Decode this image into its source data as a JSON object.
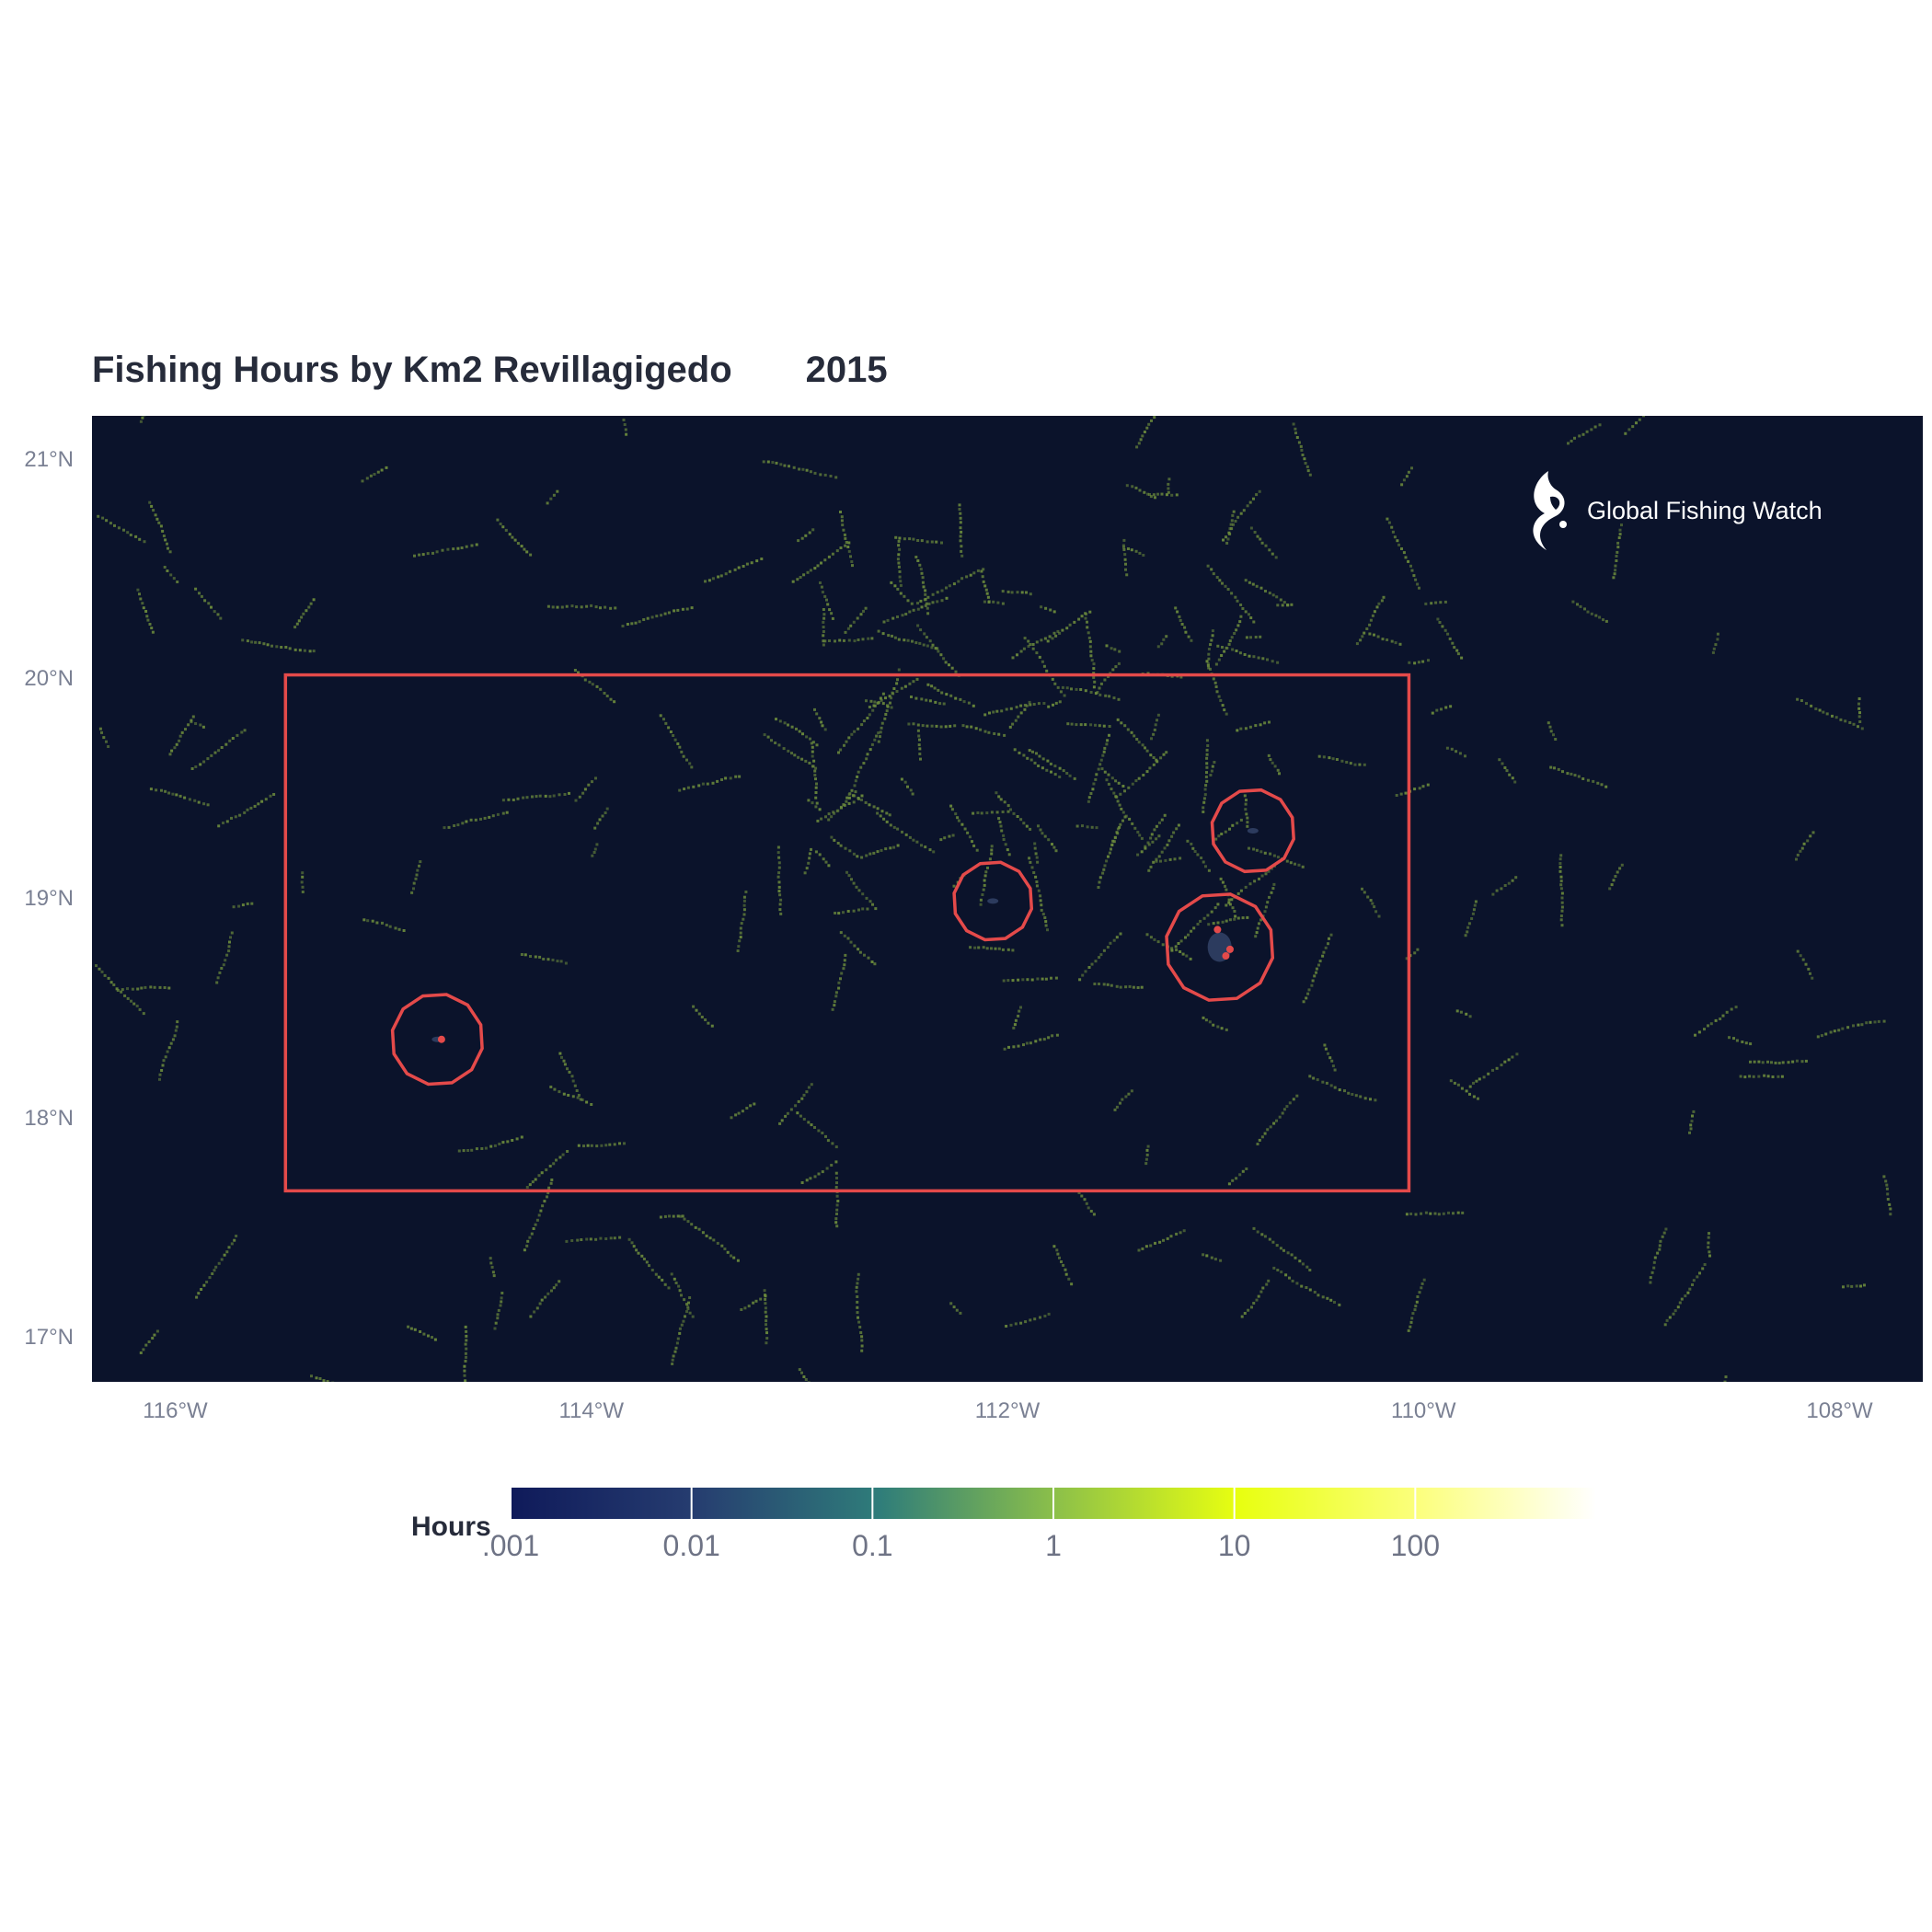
{
  "title": "Fishing Hours by Km2 Revillagigedo",
  "year": "2015",
  "brand": "Global Fishing Watch",
  "colors": {
    "ocean": "#0b132b",
    "boundary": "#e44a4a",
    "fishing_track": "#6b8a3c",
    "title_text": "#262b3a",
    "axis_text": "#7a8093"
  },
  "axes": {
    "lat_labels": [
      "21°N",
      "20°N",
      "19°N",
      "18°N",
      "17°N"
    ],
    "lon_labels": [
      "116°W",
      "114°W",
      "112°W",
      "110°W",
      "108°W"
    ]
  },
  "chart_data": {
    "type": "heatmap",
    "title": "Fishing Hours by Km2 Revillagigedo 2015",
    "xlim": [
      -116.4,
      -107.6
    ],
    "ylim": [
      16.8,
      21.2
    ],
    "x_ticks": [
      -116,
      -114,
      -112,
      -110,
      -108
    ],
    "y_ticks": [
      21,
      20,
      19,
      18,
      17
    ],
    "protected_area_box": {
      "lon_min": -115.47,
      "lon_max": -110.07,
      "lat_min": 17.67,
      "lat_max": 20.02
    },
    "island_buffers": [
      {
        "lon": -114.74,
        "lat": 18.36,
        "radius_deg": 0.22
      },
      {
        "lon": -112.07,
        "lat": 18.99,
        "radius_deg": 0.19
      },
      {
        "lon": -110.98,
        "lat": 18.78,
        "radius_deg": 0.26
      },
      {
        "lon": -110.82,
        "lat": 19.31,
        "radius_deg": 0.2
      }
    ],
    "legend": {
      "title": "Hours",
      "scale": "log",
      "tick_labels": [
        ".001",
        "0.01",
        "0.1",
        "1",
        "10",
        "100"
      ],
      "tick_values": [
        0.001,
        0.01,
        0.1,
        1,
        10,
        100
      ],
      "range": [
        0.001,
        1000
      ]
    }
  }
}
